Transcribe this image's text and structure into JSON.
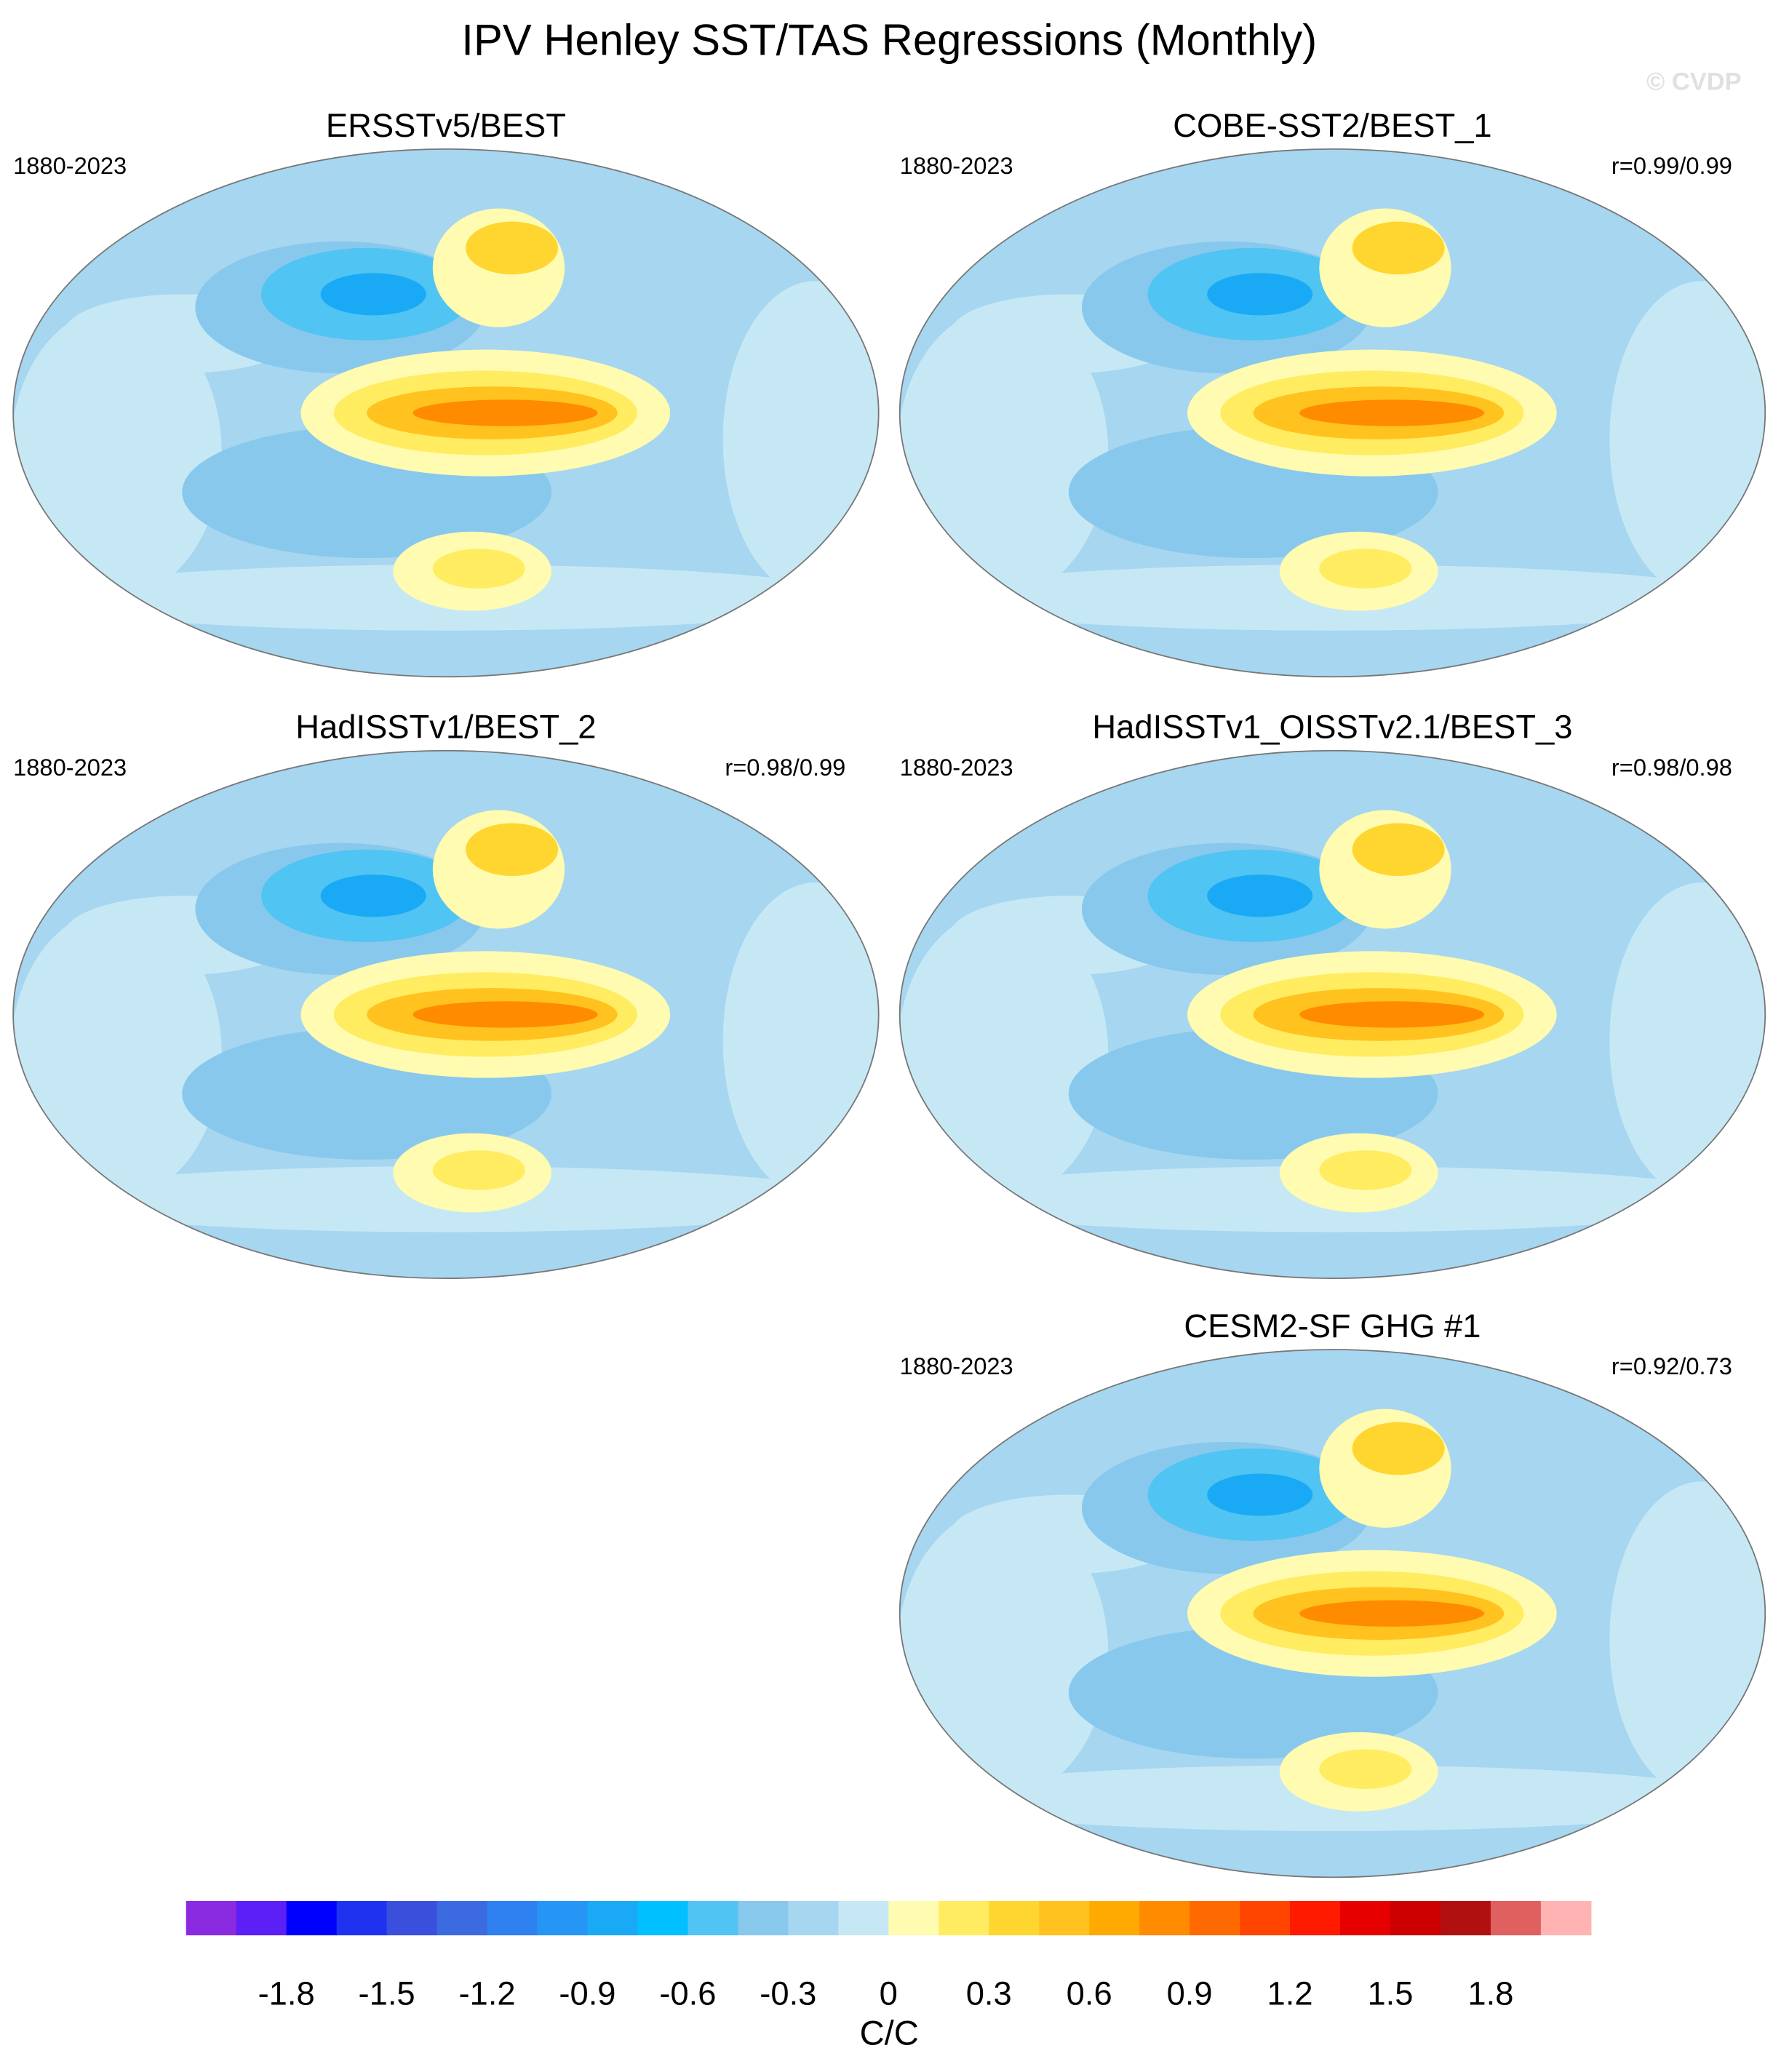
{
  "title": "IPV Henley SST/TAS Regressions (Monthly)",
  "watermark": "© CVDP",
  "panels": [
    {
      "title": "ERSSTv5/BEST",
      "period": "1880-2023"
    },
    {
      "title": "COBE-SST2/BEST_1",
      "period": "1880-2023",
      "correlation": "r=0.99/0.99"
    },
    {
      "title": "HadISSTv1/BEST_2",
      "period": "1880-2023",
      "correlation": "r=0.98/0.99"
    },
    {
      "title": "HadISSTv1_OISSTv2.1/BEST_3",
      "period": "1880-2023",
      "correlation": "r=0.98/0.98"
    },
    {
      "title": "CESM2-SF GHG #1",
      "period": "1880-2023",
      "correlation": "r=0.92/0.73"
    }
  ],
  "colorbar": {
    "label": "C/C",
    "xlim": [
      -2.1,
      2.1
    ],
    "xticks": [
      -1.8,
      -1.5,
      -1.2,
      -0.9,
      -0.6,
      -0.3,
      0,
      0.3,
      0.6,
      0.9,
      1.2,
      1.5,
      1.8
    ],
    "colors": [
      "#8a2be2",
      "#5c1ff5",
      "#0000ff",
      "#1e32f0",
      "#3a50dc",
      "#3c6ae0",
      "#2f80f0",
      "#2596f5",
      "#1aaaf5",
      "#00c0ff",
      "#50c4f2",
      "#88c8ec",
      "#a6d6f0",
      "#c6e8f5",
      "#fffbb0",
      "#ffec60",
      "#ffd530",
      "#ffc21f",
      "#ffaa00",
      "#ff8c00",
      "#ff6a00",
      "#ff4500",
      "#ff1a00",
      "#e60000",
      "#cc0000",
      "#b01010",
      "#e06060",
      "#ffb3b3"
    ]
  }
}
